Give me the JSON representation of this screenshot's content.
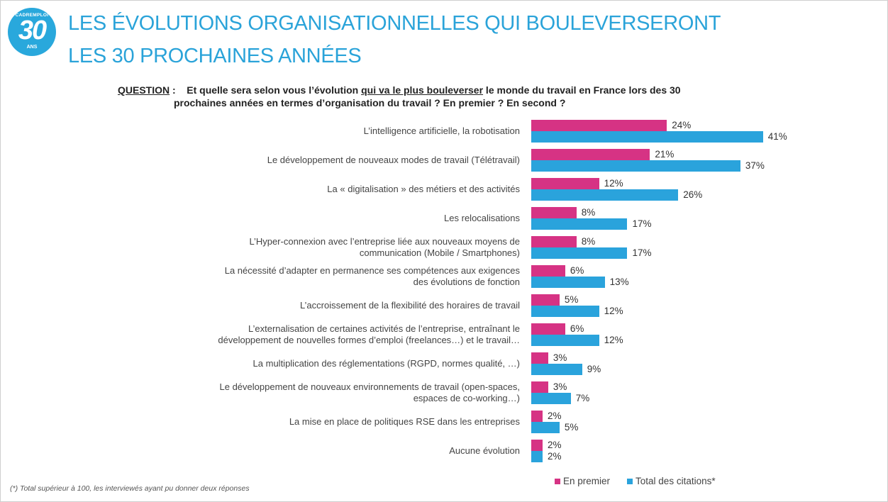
{
  "logo": {
    "brand": "CADREMPLOI",
    "number": "30",
    "suffix": "ANS"
  },
  "title": {
    "line1": "LES ÉVOLUTIONS ORGANISATIONNELLES QUI BOULEVERSERONT",
    "line2": "LES 30 PROCHAINES ANNÉES"
  },
  "question": {
    "label": "QUESTION",
    "sep": " :",
    "part1": "Et quelle sera selon vous l’évolution ",
    "underlined": "qui va le plus bouleverser",
    "part2": " le monde du travail en France lors des 30",
    "line2": "prochaines années en termes d’organisation du travail ? En premier ? En second ?"
  },
  "colors": {
    "premier": "#d63384",
    "total": "#2aa3dc",
    "title": "#2aa3d9"
  },
  "chart_data": {
    "type": "bar",
    "orientation": "horizontal",
    "categories": [
      [
        "L’intelligence artificielle, la robotisation"
      ],
      [
        "Le développement de nouveaux modes de travail (Télétravail)"
      ],
      [
        "La « digitalisation » des métiers et des activités"
      ],
      [
        "Les relocalisations"
      ],
      [
        "L’Hyper-connexion avec l’entreprise liée aux nouveaux moyens de",
        "communication (Mobile / Smartphones)"
      ],
      [
        "La nécessité d’adapter en permanence ses compétences aux exigences",
        "des évolutions de fonction"
      ],
      [
        "L’accroissement de la flexibilité des horaires de travail"
      ],
      [
        "L’externalisation de certaines activités de l’entreprise, entraînant le",
        "développement de nouvelles formes d’emploi (freelances…) et le travail…"
      ],
      [
        "La multiplication des réglementations (RGPD, normes qualité, …)"
      ],
      [
        "Le développement de nouveaux environnements de travail (open-spaces,",
        "espaces de co-working…)"
      ],
      [
        "La mise en place de politiques RSE dans les entreprises"
      ],
      [
        "Aucune évolution"
      ]
    ],
    "series": [
      {
        "name": "En premier",
        "values": [
          24,
          21,
          12,
          8,
          8,
          6,
          5,
          6,
          3,
          3,
          2,
          2
        ]
      },
      {
        "name": "Total des citations*",
        "values": [
          41,
          37,
          26,
          17,
          17,
          13,
          12,
          12,
          9,
          7,
          5,
          2
        ]
      }
    ],
    "value_suffix": "%",
    "legend_position": "bottom"
  },
  "footnote": "(*) Total supérieur à 100, les interviewés ayant pu donner deux réponses"
}
